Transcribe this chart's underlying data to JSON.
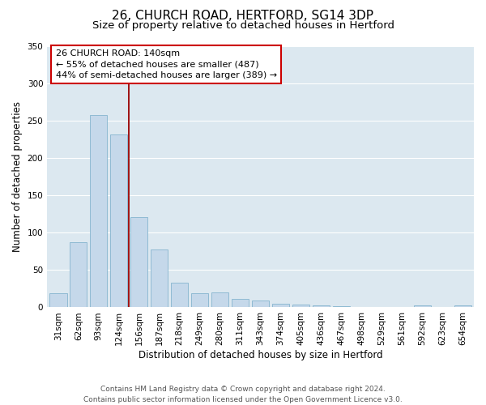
{
  "title": "26, CHURCH ROAD, HERTFORD, SG14 3DP",
  "subtitle": "Size of property relative to detached houses in Hertford",
  "xlabel": "Distribution of detached houses by size in Hertford",
  "ylabel": "Number of detached properties",
  "bar_labels": [
    "31sqm",
    "62sqm",
    "93sqm",
    "124sqm",
    "156sqm",
    "187sqm",
    "218sqm",
    "249sqm",
    "280sqm",
    "311sqm",
    "343sqm",
    "374sqm",
    "405sqm",
    "436sqm",
    "467sqm",
    "498sqm",
    "529sqm",
    "561sqm",
    "592sqm",
    "623sqm",
    "654sqm"
  ],
  "bar_values": [
    19,
    87,
    257,
    231,
    121,
    77,
    33,
    19,
    20,
    11,
    9,
    5,
    4,
    3,
    2,
    0,
    0,
    0,
    3,
    0,
    3
  ],
  "bar_color": "#c5d8ea",
  "bar_edge_color": "#85b5cf",
  "ylim": [
    0,
    350
  ],
  "yticks": [
    0,
    50,
    100,
    150,
    200,
    250,
    300,
    350
  ],
  "vline_x_idx": 3.5,
  "vline_color": "#990000",
  "annotation_text": "26 CHURCH ROAD: 140sqm\n← 55% of detached houses are smaller (487)\n44% of semi-detached houses are larger (389) →",
  "annotation_box_facecolor": "#ffffff",
  "annotation_box_edgecolor": "#cc0000",
  "footer_line1": "Contains HM Land Registry data © Crown copyright and database right 2024.",
  "footer_line2": "Contains public sector information licensed under the Open Government Licence v3.0.",
  "fig_bg_color": "#ffffff",
  "plot_bg_color": "#dce8f0",
  "grid_color": "#ffffff",
  "title_fontsize": 11,
  "subtitle_fontsize": 9.5,
  "axis_label_fontsize": 8.5,
  "tick_fontsize": 7.5,
  "annotation_fontsize": 8,
  "footer_fontsize": 6.5
}
